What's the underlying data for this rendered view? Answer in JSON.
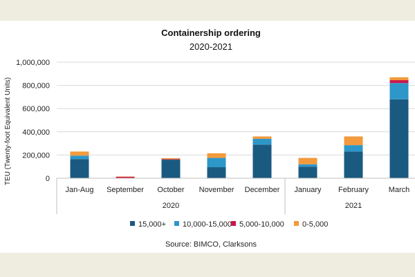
{
  "chart_data": {
    "type": "bar",
    "stacked": true,
    "title": "Containership ordering",
    "subtitle": "2020-2021",
    "ylabel": "TEU (Twenty-foot Equivalent Units)",
    "xlabel": "",
    "ylim": [
      0,
      1000000
    ],
    "yticks": [
      0,
      200000,
      400000,
      600000,
      800000,
      1000000
    ],
    "ytick_labels": [
      "0",
      "200,000",
      "400,000",
      "600,000",
      "800,000",
      "1,000,000"
    ],
    "categories": [
      "Jan-Aug",
      "September",
      "October",
      "November",
      "December",
      "January",
      "February",
      "March"
    ],
    "groups": [
      {
        "label": "2020",
        "start": 0,
        "end": 4
      },
      {
        "label": "2021",
        "start": 5,
        "end": 7
      }
    ],
    "series": [
      {
        "name": "15,000+",
        "color": "#1b5a80",
        "values": [
          165000,
          0,
          160000,
          95000,
          290000,
          100000,
          230000,
          680000
        ]
      },
      {
        "name": "10,000-15,000",
        "color": "#2e97c9",
        "values": [
          30000,
          0,
          0,
          80000,
          50000,
          20000,
          55000,
          140000
        ]
      },
      {
        "name": "5,000-10,000",
        "color": "#c8184a",
        "values": [
          0,
          12000,
          5000,
          0,
          0,
          0,
          0,
          25000
        ]
      },
      {
        "name": "0-5,000",
        "color": "#f29a3c",
        "values": [
          35000,
          3000,
          8000,
          40000,
          20000,
          55000,
          75000,
          25000
        ]
      }
    ],
    "grid": true,
    "legend": "bottom",
    "source": "Source:  BIMCO, Clarksons"
  }
}
